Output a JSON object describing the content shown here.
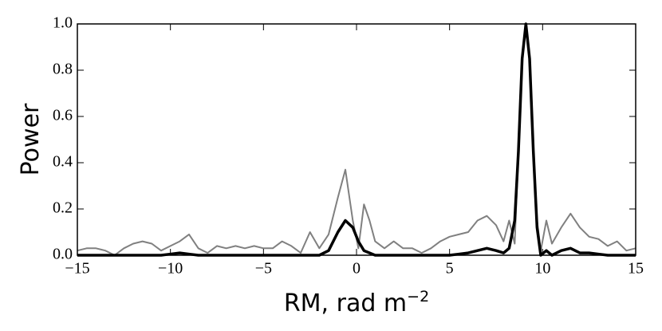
{
  "chart_data": {
    "type": "line",
    "xlabel": "RM, rad m",
    "xlabel_superscript": "−2",
    "ylabel": "Power",
    "x": [
      -15,
      -14.5,
      -14,
      -13.5,
      -13,
      -12.5,
      -12,
      -11.5,
      -11,
      -10.5,
      -10,
      -9.5,
      -9,
      -8.5,
      -8,
      -7.5,
      -7,
      -6.5,
      -6,
      -5.5,
      -5,
      -4.5,
      -4,
      -3.5,
      -3,
      -2.5,
      -2,
      -1.5,
      -1,
      -0.6,
      -0.2,
      0.1,
      0.4,
      0.7,
      1,
      1.5,
      2,
      2.5,
      3,
      3.5,
      4,
      4.5,
      5,
      5.5,
      6,
      6.5,
      7,
      7.5,
      7.9,
      8.2,
      8.5,
      8.7,
      8.9,
      9.1,
      9.3,
      9.5,
      9.7,
      9.9,
      10.2,
      10.5,
      11,
      11.5,
      12,
      12.5,
      13,
      13.5,
      14,
      14.5,
      15
    ],
    "series": [
      {
        "color": "#808080",
        "width": 2,
        "values": [
          0.02,
          0.03,
          0.03,
          0.02,
          0,
          0.03,
          0.05,
          0.06,
          0.05,
          0.02,
          0.04,
          0.06,
          0.09,
          0.03,
          0.01,
          0.04,
          0.03,
          0.04,
          0.03,
          0.04,
          0.03,
          0.03,
          0.06,
          0.04,
          0.01,
          0.1,
          0.03,
          0.09,
          0.25,
          0.37,
          0.15,
          0.03,
          0.22,
          0.15,
          0.06,
          0.03,
          0.06,
          0.03,
          0.03,
          0.01,
          0.03,
          0.06,
          0.08,
          0.09,
          0.1,
          0.15,
          0.17,
          0.13,
          0.06,
          0.15,
          0.05,
          0.45,
          0.85,
          1,
          0.85,
          0.45,
          0.15,
          0.02,
          0.15,
          0.05,
          0.12,
          0.18,
          0.12,
          0.08,
          0.07,
          0.04,
          0.06,
          0.02,
          0.03
        ]
      },
      {
        "color": "#000000",
        "width": 3.5,
        "values": [
          0,
          0,
          0,
          0,
          0,
          0,
          0,
          0,
          0,
          0,
          0.005,
          0.01,
          0.005,
          0,
          0,
          0,
          0,
          0,
          0,
          0,
          0,
          0,
          0,
          0,
          0,
          0,
          0,
          0.02,
          0.1,
          0.15,
          0.12,
          0.06,
          0.02,
          0.01,
          0,
          0,
          0,
          0,
          0,
          0,
          0,
          0,
          0,
          0.005,
          0.01,
          0.02,
          0.03,
          0.02,
          0.01,
          0.03,
          0.15,
          0.45,
          0.85,
          1,
          0.85,
          0.45,
          0.12,
          0,
          0.02,
          0,
          0.02,
          0.03,
          0.01,
          0.01,
          0.005,
          0,
          0,
          0,
          0
        ]
      }
    ],
    "xlim": [
      -15,
      15
    ],
    "xticks": [
      {
        "value": -15,
        "label": "−15"
      },
      {
        "value": -10,
        "label": "−10"
      },
      {
        "value": -5,
        "label": "−5"
      },
      0,
      5,
      10,
      15
    ],
    "ylim": [
      0,
      1
    ],
    "yticks": [
      {
        "value": 0,
        "label": "0.0"
      },
      0.2,
      0.4,
      0.6,
      0.8,
      {
        "value": 1,
        "label": "1.0"
      }
    ]
  }
}
